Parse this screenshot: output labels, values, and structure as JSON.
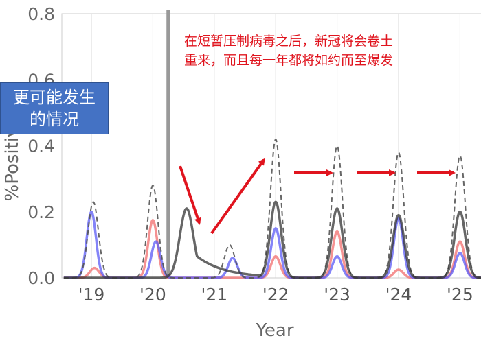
{
  "chart_data": {
    "type": "line",
    "xlabel": "Year",
    "ylabel": "%Positive ILI",
    "ylim": [
      0,
      0.8
    ],
    "y_ticks": [
      "0.0",
      "0.2",
      "0.4",
      "0.6",
      "0.8"
    ],
    "x_ticks": [
      "'19",
      "'20",
      "'21",
      "'22",
      "'23",
      "'24",
      "'25"
    ],
    "grid": "vertical",
    "colors": {
      "dashed": "#555555",
      "black": "#333333",
      "blue": "#5b5bf5",
      "red": "#f26d6d",
      "arrow": "#e0141e",
      "shutdown": "#999999"
    },
    "peaks": {
      "dashed": [
        {
          "x": 2019.03,
          "y": 0.23
        },
        {
          "x": 2020.0,
          "y": 0.28
        },
        {
          "x": 2021.25,
          "y": 0.1
        },
        {
          "x": 2022.0,
          "y": 0.42
        },
        {
          "x": 2023.0,
          "y": 0.4
        },
        {
          "x": 2024.0,
          "y": 0.38
        },
        {
          "x": 2025.0,
          "y": 0.37
        }
      ],
      "black": [
        {
          "x": 2020.55,
          "y": 0.21
        },
        {
          "x": 2022.0,
          "y": 0.23
        },
        {
          "x": 2023.0,
          "y": 0.21
        },
        {
          "x": 2024.0,
          "y": 0.19
        },
        {
          "x": 2025.0,
          "y": 0.2
        }
      ],
      "blue": [
        {
          "x": 2019.0,
          "y": 0.2
        },
        {
          "x": 2020.05,
          "y": 0.11
        },
        {
          "x": 2021.3,
          "y": 0.06
        },
        {
          "x": 2022.0,
          "y": 0.15
        },
        {
          "x": 2023.0,
          "y": 0.065
        },
        {
          "x": 2024.0,
          "y": 0.18
        },
        {
          "x": 2025.0,
          "y": 0.075
        }
      ],
      "red": [
        {
          "x": 2019.05,
          "y": 0.03
        },
        {
          "x": 2020.0,
          "y": 0.175
        },
        {
          "x": 2022.0,
          "y": 0.065
        },
        {
          "x": 2023.0,
          "y": 0.14
        },
        {
          "x": 2024.0,
          "y": 0.025
        },
        {
          "x": 2025.0,
          "y": 0.11
        }
      ]
    },
    "shutdown_x": 2020.25,
    "annotation_lines": [
      "在短暂压制病毒之后，新冠将会卷土",
      "重来，而且每一年都将如约而至爆发"
    ],
    "callout_lines": [
      "更可能发生",
      "的情况"
    ]
  }
}
